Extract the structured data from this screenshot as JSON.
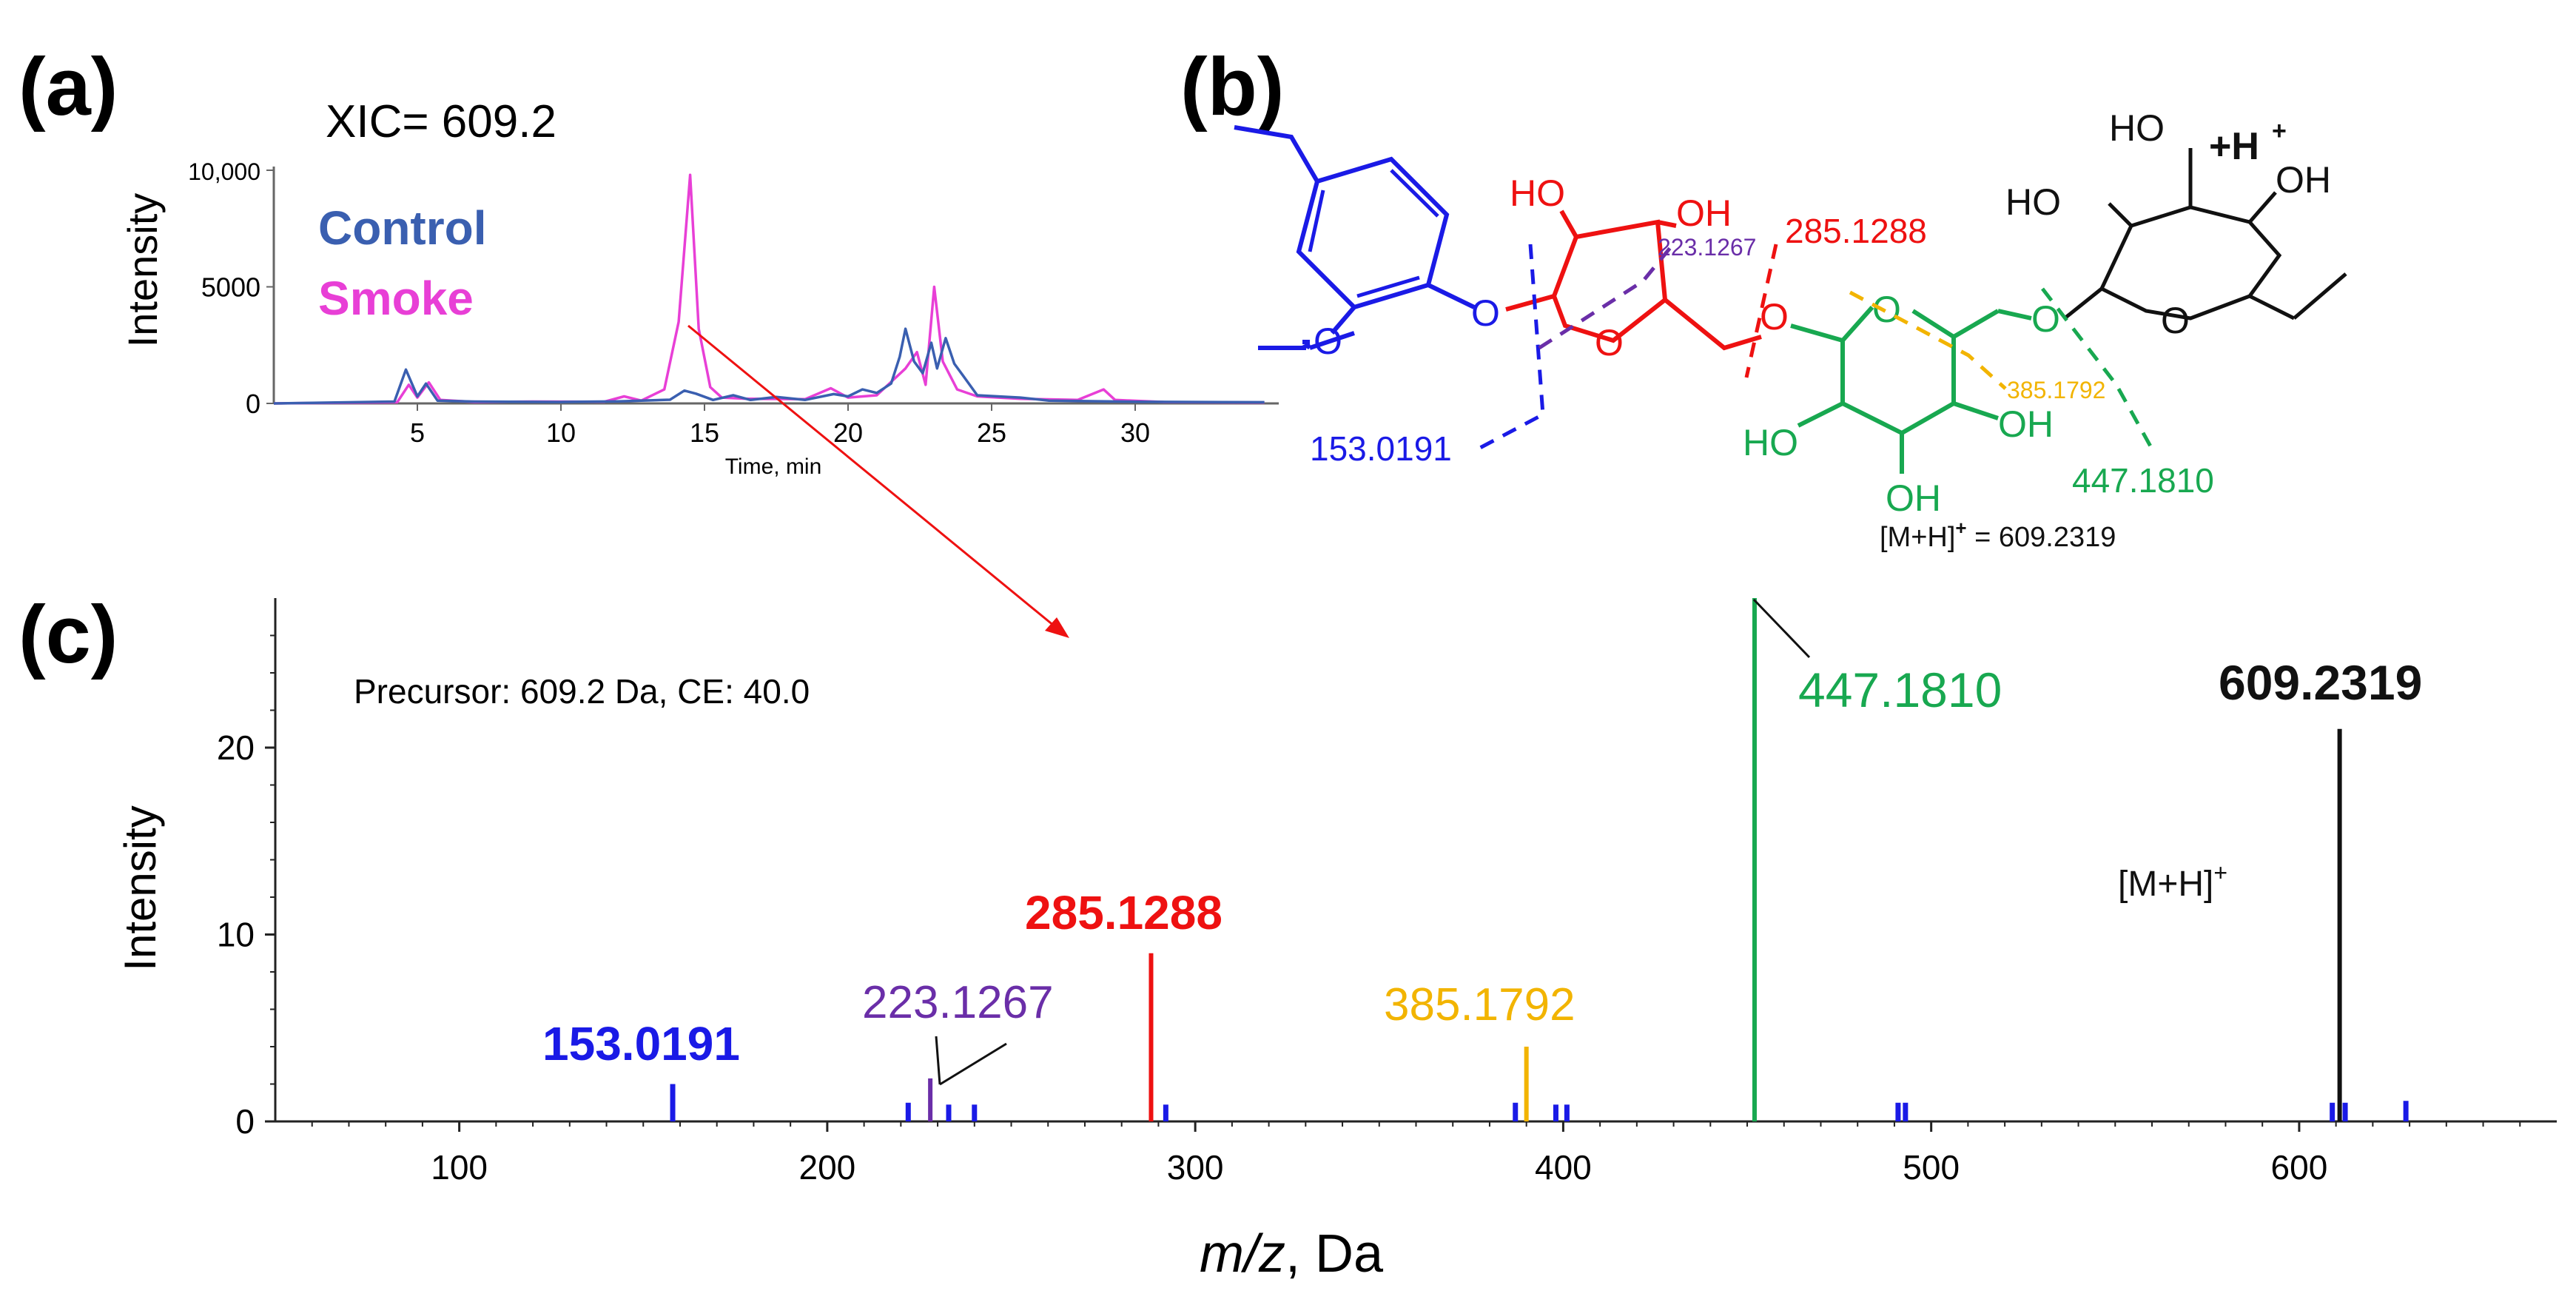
{
  "panels": {
    "a": {
      "label": "(a)"
    },
    "b": {
      "label": "(b)"
    },
    "c": {
      "label": "(c)"
    }
  },
  "colors": {
    "control": "#3a5fb0",
    "smoke": "#e83fd6",
    "blue": "#1a1ae6",
    "red": "#ee1111",
    "purple": "#6a2ea8",
    "orange": "#f2b400",
    "green": "#18a850",
    "black": "#111111"
  },
  "chart_data": [
    {
      "type": "line",
      "title": "XIC= 609.2",
      "xlabel": "Time, min",
      "ylabel": "Intensity",
      "xlim": [
        0,
        35
      ],
      "ylim": [
        0,
        10000
      ],
      "xticks": [
        5,
        10,
        15,
        20,
        25,
        30
      ],
      "yticks": [
        {
          "value": 0,
          "label": "0"
        },
        {
          "value": 5000,
          "label": "5000"
        },
        {
          "value": 10000,
          "label": "10,000"
        }
      ],
      "legend_position": "top-left",
      "series": [
        {
          "name": "Control",
          "points": [
            [
              0,
              0
            ],
            [
              4.2,
              80
            ],
            [
              4.6,
              1450
            ],
            [
              5.0,
              300
            ],
            [
              5.3,
              850
            ],
            [
              5.7,
              120
            ],
            [
              7,
              80
            ],
            [
              10,
              60
            ],
            [
              12,
              90
            ],
            [
              13.8,
              160
            ],
            [
              14.3,
              550
            ],
            [
              14.7,
              420
            ],
            [
              15.3,
              150
            ],
            [
              16,
              350
            ],
            [
              16.6,
              150
            ],
            [
              17.5,
              280
            ],
            [
              18.5,
              150
            ],
            [
              19.5,
              400
            ],
            [
              20,
              300
            ],
            [
              20.5,
              600
            ],
            [
              21,
              450
            ],
            [
              21.5,
              850
            ],
            [
              21.8,
              2000
            ],
            [
              22,
              3200
            ],
            [
              22.3,
              1800
            ],
            [
              22.6,
              1300
            ],
            [
              22.9,
              2600
            ],
            [
              23.1,
              1500
            ],
            [
              23.4,
              2800
            ],
            [
              23.7,
              1700
            ],
            [
              24,
              1200
            ],
            [
              24.5,
              350
            ],
            [
              26,
              250
            ],
            [
              27,
              120
            ],
            [
              30,
              70
            ],
            [
              34.5,
              50
            ]
          ]
        },
        {
          "name": "Smoke",
          "points": [
            [
              0,
              0
            ],
            [
              4.3,
              50
            ],
            [
              4.7,
              800
            ],
            [
              5.0,
              250
            ],
            [
              5.4,
              900
            ],
            [
              5.8,
              150
            ],
            [
              7,
              60
            ],
            [
              9,
              80
            ],
            [
              11.5,
              70
            ],
            [
              12.2,
              300
            ],
            [
              12.8,
              120
            ],
            [
              13.6,
              600
            ],
            [
              14.1,
              3500
            ],
            [
              14.5,
              9800
            ],
            [
              14.8,
              3200
            ],
            [
              15.2,
              700
            ],
            [
              15.6,
              250
            ],
            [
              16.5,
              200
            ],
            [
              18.5,
              180
            ],
            [
              19.4,
              650
            ],
            [
              20,
              250
            ],
            [
              21,
              350
            ],
            [
              22,
              1500
            ],
            [
              22.4,
              2200
            ],
            [
              22.7,
              800
            ],
            [
              23.0,
              5000
            ],
            [
              23.3,
              1800
            ],
            [
              23.8,
              600
            ],
            [
              24.5,
              300
            ],
            [
              26,
              200
            ],
            [
              28,
              150
            ],
            [
              28.9,
              600
            ],
            [
              29.3,
              150
            ],
            [
              31,
              60
            ],
            [
              34.5,
              40
            ]
          ]
        }
      ]
    },
    {
      "type": "bar",
      "annotation": "Precursor: 609.2 Da, CE: 40.0",
      "xlabel_italic": "m/z",
      "xlabel_rest": ", Da",
      "ylabel": "Intensity",
      "xlim": [
        50,
        670
      ],
      "ylim": [
        0,
        28
      ],
      "xticks": [
        100,
        200,
        300,
        400,
        500,
        600
      ],
      "yticks": [
        0,
        10,
        20
      ],
      "peaks": [
        {
          "mz": 158.0,
          "intensity": 2.0,
          "color_key": "blue"
        },
        {
          "mz": 222.0,
          "intensity": 1.0,
          "color_key": "blue"
        },
        {
          "mz": 228.0,
          "intensity": 2.3,
          "color_key": "purple"
        },
        {
          "mz": 233.0,
          "intensity": 0.9,
          "color_key": "blue"
        },
        {
          "mz": 240.0,
          "intensity": 0.9,
          "color_key": "blue"
        },
        {
          "mz": 288.0,
          "intensity": 9.0,
          "color_key": "red"
        },
        {
          "mz": 292.0,
          "intensity": 0.9,
          "color_key": "blue"
        },
        {
          "mz": 387.0,
          "intensity": 1.0,
          "color_key": "blue"
        },
        {
          "mz": 390.0,
          "intensity": 4.0,
          "color_key": "orange"
        },
        {
          "mz": 398.0,
          "intensity": 0.9,
          "color_key": "blue"
        },
        {
          "mz": 401.0,
          "intensity": 0.9,
          "color_key": "blue"
        },
        {
          "mz": 452.0,
          "intensity": 28.0,
          "color_key": "green"
        },
        {
          "mz": 491.0,
          "intensity": 1.0,
          "color_key": "blue"
        },
        {
          "mz": 493.0,
          "intensity": 1.0,
          "color_key": "blue"
        },
        {
          "mz": 609.0,
          "intensity": 1.0,
          "color_key": "blue"
        },
        {
          "mz": 611.0,
          "intensity": 21.0,
          "color_key": "black"
        },
        {
          "mz": 612.5,
          "intensity": 1.0,
          "color_key": "blue"
        },
        {
          "mz": 629.0,
          "intensity": 1.1,
          "color_key": "blue"
        }
      ],
      "peak_labels": [
        {
          "text": "153.0191",
          "color_key": "blue"
        },
        {
          "text": "223.1267",
          "color_key": "purple"
        },
        {
          "text": "285.1288",
          "color_key": "red"
        },
        {
          "text": "385.1792",
          "color_key": "orange"
        },
        {
          "text": "447.1810",
          "color_key": "green"
        },
        {
          "text": "609.2319",
          "color_key": "black"
        }
      ],
      "molecular_ion_label": "[M+H]",
      "molecular_ion_charge": "+"
    }
  ],
  "structure": {
    "atoms": {
      "oxygen": "O",
      "ho": "HO",
      "oh": "OH",
      "h_plus": "+H",
      "h_plus_charge": "+"
    },
    "fragment_labels": {
      "f153": "153.0191",
      "f223": "223.1267",
      "f285": "285.1288",
      "f385": "385.1792",
      "f447": "447.1810"
    },
    "mh_label": "[M+H]",
    "mh_charge": "+",
    "mh_value": " = 609.2319"
  }
}
